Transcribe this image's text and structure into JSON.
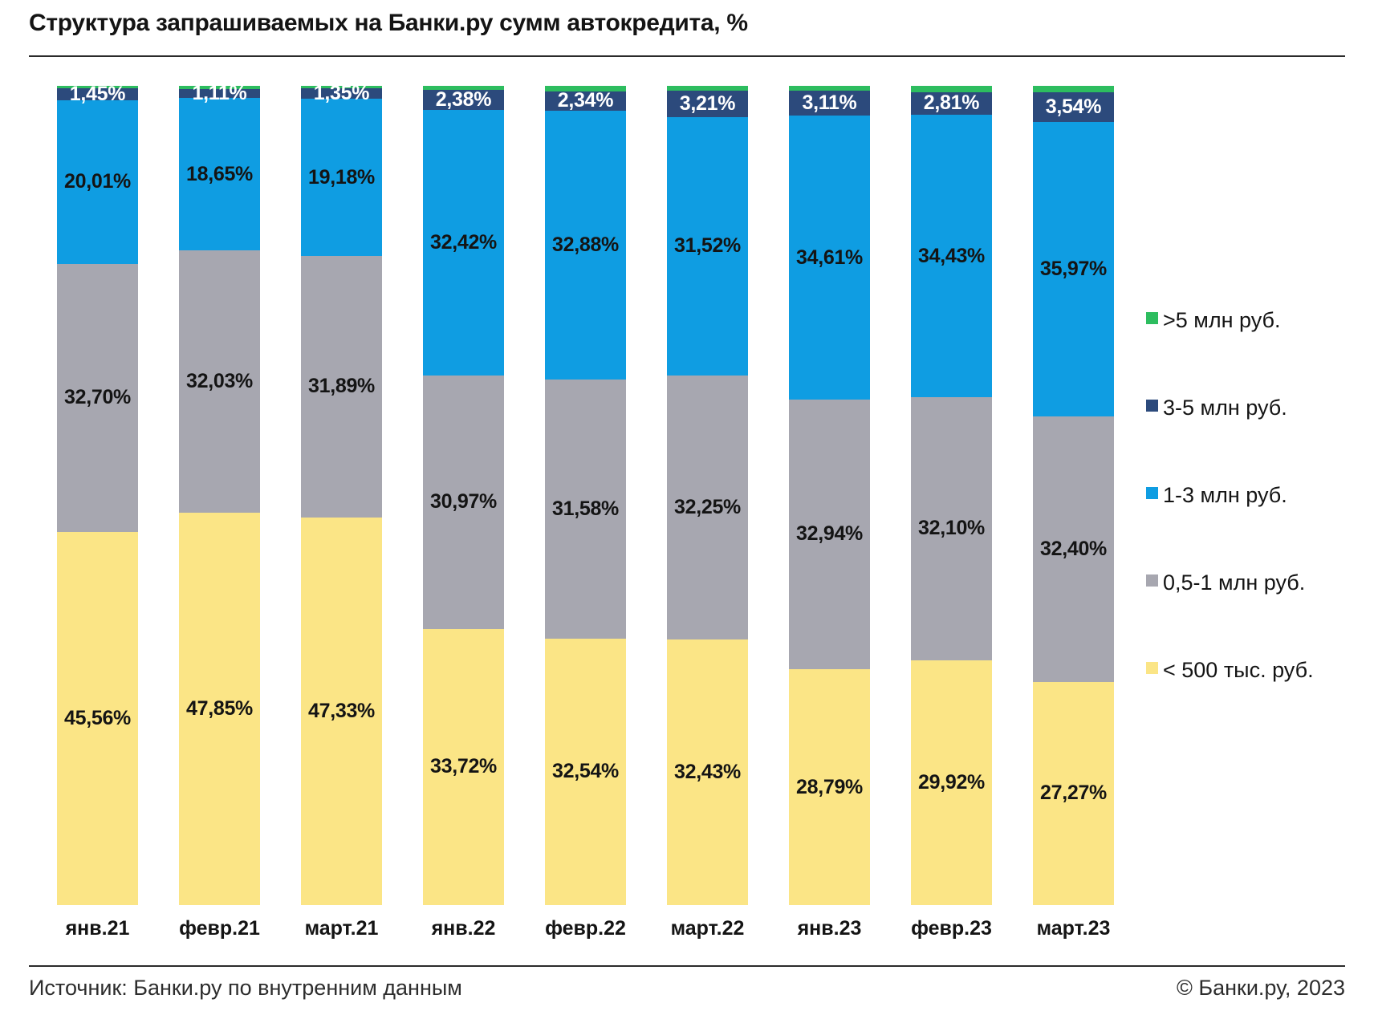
{
  "header": {
    "title": "Структура запрашиваемых на Банки.ру сумм автокредита, %"
  },
  "footer": {
    "source": "Источник: Банки.ру по внутренним данным",
    "copyright": "© Банки.ру, 2023"
  },
  "chart_data": {
    "type": "bar",
    "stacked": true,
    "percent_stack": true,
    "unit": "%",
    "title": "Структура запрашиваемых на Банки.ру сумм автокредита, %",
    "xlabel": "",
    "ylabel": "",
    "ylim": [
      0,
      100
    ],
    "grid": false,
    "legend_position": "right",
    "categories": [
      "янв.21",
      "февр.21",
      "март.21",
      "янв.22",
      "февр.22",
      "март.22",
      "янв.23",
      "февр.23",
      "март.23"
    ],
    "series": [
      {
        "name": "< 500 тыс. руб.",
        "color": "#fbe586",
        "label_color": "#141414",
        "values": [
          45.56,
          47.85,
          47.33,
          33.72,
          32.54,
          32.43,
          28.79,
          29.92,
          27.27
        ],
        "labels": [
          "45,56%",
          "47,85%",
          "47,33%",
          "33,72%",
          "32,54%",
          "32,43%",
          "28,79%",
          "29,92%",
          "27,27%"
        ]
      },
      {
        "name": "0,5-1 млн руб.",
        "color": "#a7a7b0",
        "label_color": "#141414",
        "values": [
          32.7,
          32.03,
          31.89,
          30.97,
          31.58,
          32.25,
          32.94,
          32.1,
          32.4
        ],
        "labels": [
          "32,70%",
          "32,03%",
          "31,89%",
          "30,97%",
          "31,58%",
          "32,25%",
          "32,94%",
          "32,10%",
          "32,40%"
        ]
      },
      {
        "name": "1-3 млн руб.",
        "color": "#0f9de2",
        "label_color": "#141414",
        "values": [
          20.01,
          18.65,
          19.18,
          32.42,
          32.88,
          31.52,
          34.61,
          34.43,
          35.97
        ],
        "labels": [
          "20,01%",
          "18,65%",
          "19,18%",
          "32,42%",
          "32,88%",
          "31,52%",
          "34,61%",
          "34,43%",
          "35,97%"
        ]
      },
      {
        "name": "3-5 млн руб.",
        "color": "#2c4a7c",
        "label_color": "#ffffff",
        "values": [
          1.45,
          1.11,
          1.35,
          2.38,
          2.34,
          3.21,
          3.11,
          2.81,
          3.54
        ],
        "labels": [
          "1,45%",
          "1,11%",
          "1,35%",
          "2,38%",
          "2,34%",
          "3,21%",
          "3,11%",
          "2,81%",
          "3,54%"
        ]
      },
      {
        "name": ">5 млн руб.",
        "color": "#2dbd5f",
        "label_color": null,
        "estimated_unlabeled": true,
        "values": [
          0.28,
          0.36,
          0.25,
          0.51,
          0.66,
          0.59,
          0.55,
          0.74,
          0.82
        ],
        "labels": null
      }
    ],
    "legend_items_top_to_bottom": [
      {
        "label": ">5 млн руб.",
        "color": "#2dbd5f"
      },
      {
        "label": "3-5 млн руб.",
        "color": "#2c4a7c"
      },
      {
        "label": "1-3 млн руб.",
        "color": "#0f9de2"
      },
      {
        "label": "0,5-1 млн руб.",
        "color": "#a7a7b0"
      },
      {
        "label": "< 500 тыс. руб.",
        "color": "#fbe586"
      }
    ]
  }
}
